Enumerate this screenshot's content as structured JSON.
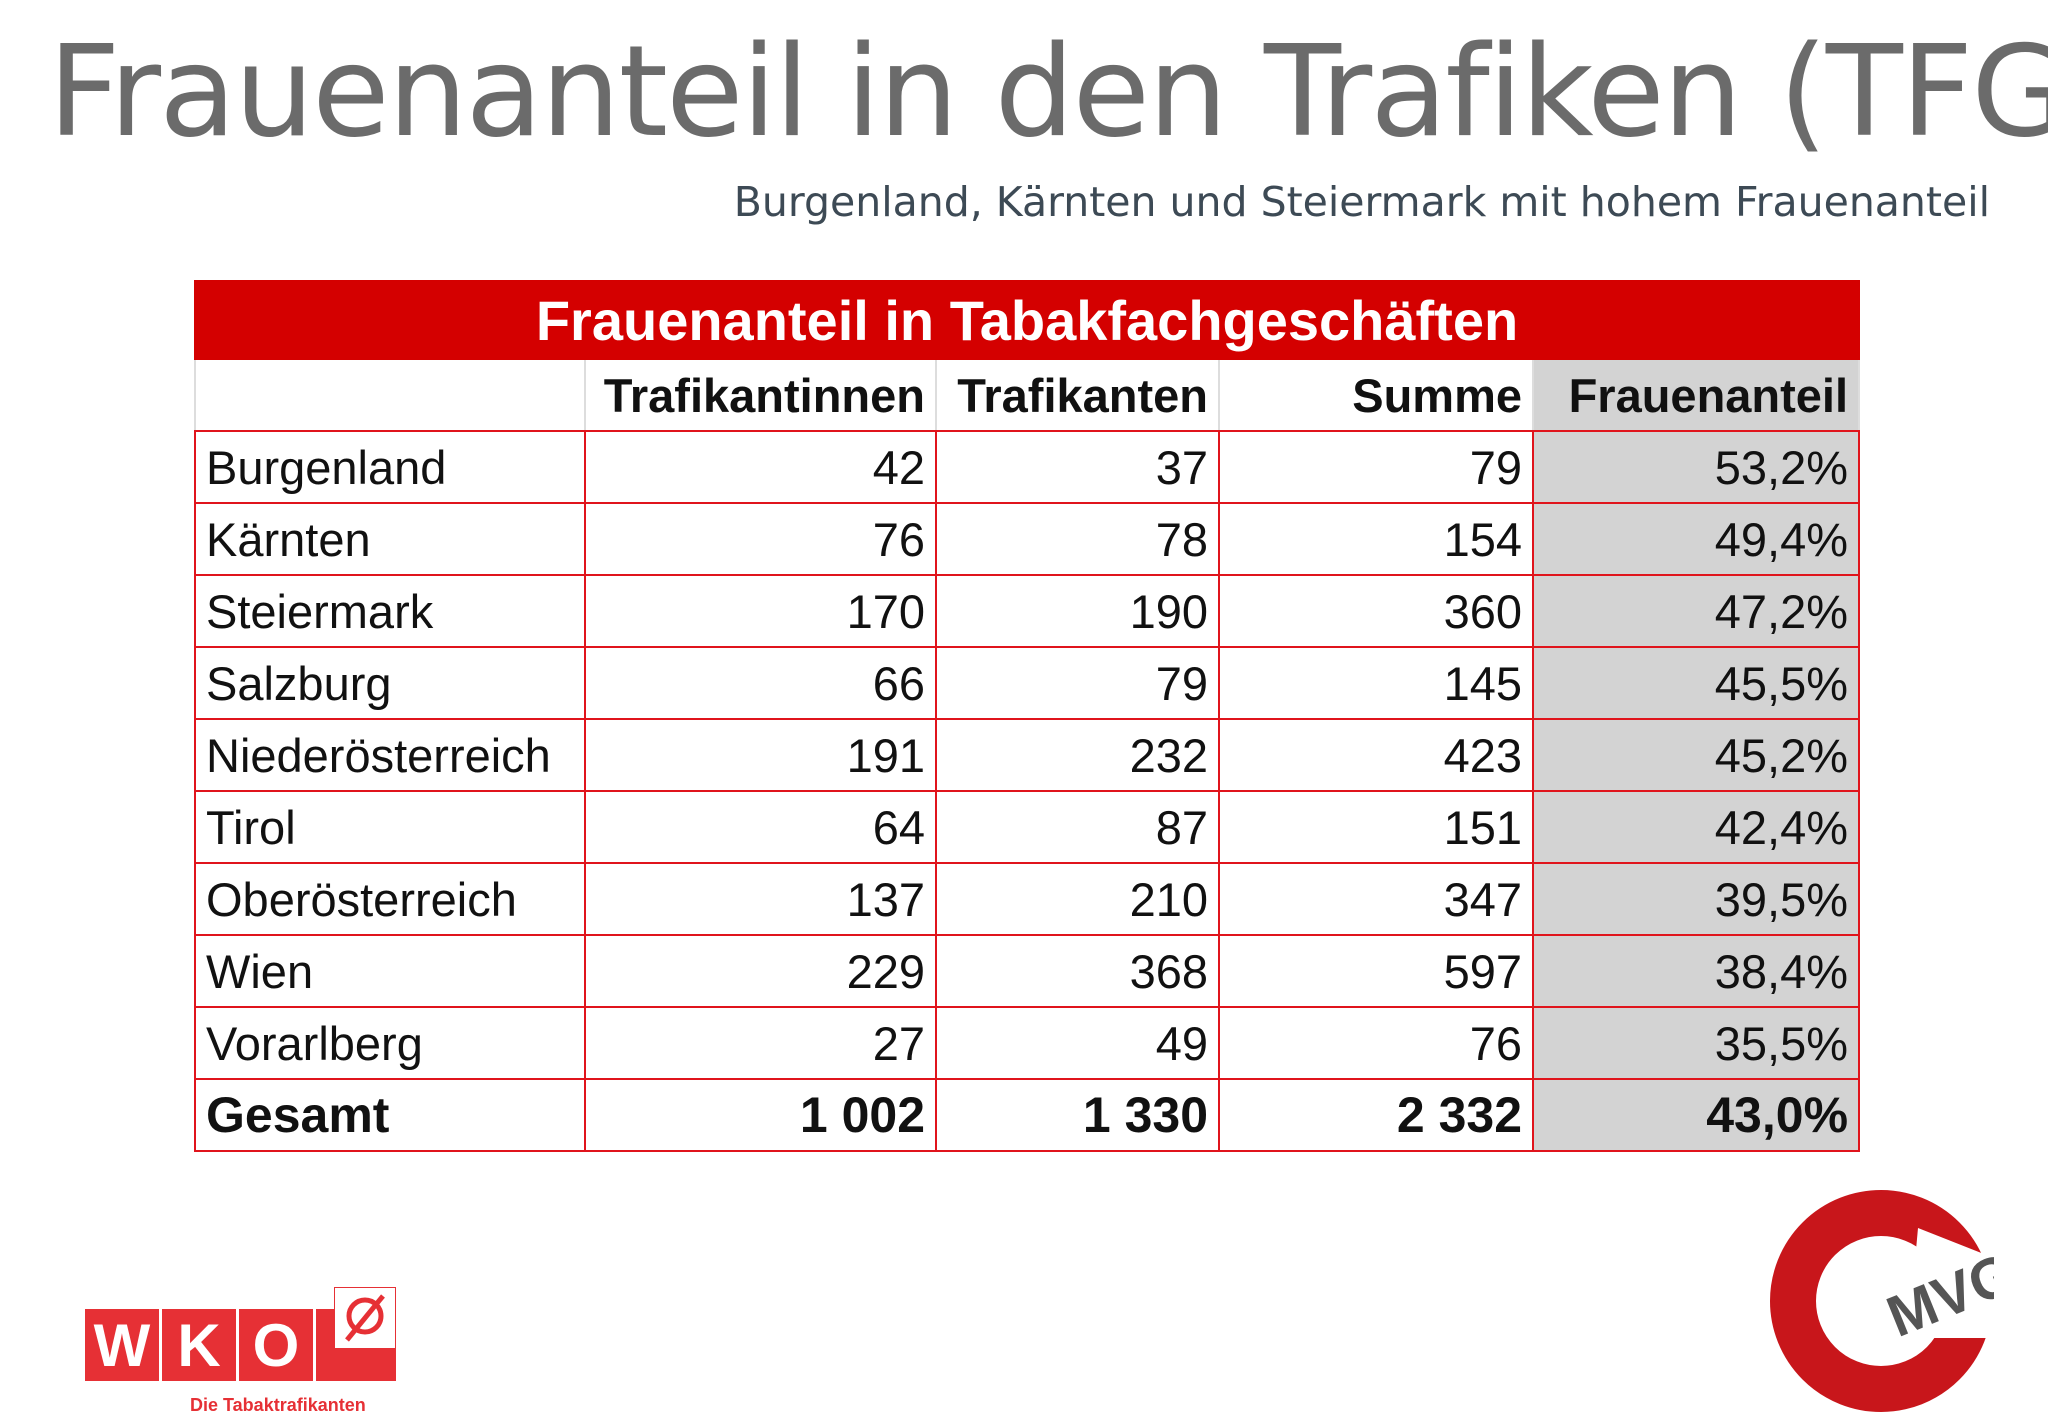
{
  "title": "Frauenanteil in den Trafiken (TFG)",
  "subtitle": "Burgenland, Kärnten und Steiermark mit hohem Frauenanteil",
  "table": {
    "caption": "Frauenanteil in Tabakfachgeschäften",
    "headers": [
      "",
      "Trafikantinnen",
      "Trafikanten",
      "Summe",
      "Frauenanteil"
    ],
    "rows": [
      [
        "Burgenland",
        "42",
        "37",
        "79",
        "53,2%"
      ],
      [
        "Kärnten",
        "76",
        "78",
        "154",
        "49,4%"
      ],
      [
        "Steiermark",
        "170",
        "190",
        "360",
        "47,2%"
      ],
      [
        "Salzburg",
        "66",
        "79",
        "145",
        "45,5%"
      ],
      [
        "Niederösterreich",
        "191",
        "232",
        "423",
        "45,2%"
      ],
      [
        "Tirol",
        "64",
        "87",
        "151",
        "42,4%"
      ],
      [
        "Oberösterreich",
        "137",
        "210",
        "347",
        "39,5%"
      ],
      [
        "Wien",
        "229",
        "368",
        "597",
        "38,4%"
      ],
      [
        "Vorarlberg",
        "27",
        "49",
        "76",
        "35,5%"
      ]
    ],
    "total": [
      "Gesamt",
      "1 002",
      "1 330",
      "2 332",
      "43,0%"
    ]
  },
  "logos": {
    "wko": {
      "letters": [
        "W",
        "K",
        "O"
      ],
      "label": "Die Tabaktrafikanten"
    },
    "mvg": "MVG"
  },
  "colors": {
    "red": "#d40000",
    "gray": "#d3d3d3"
  }
}
